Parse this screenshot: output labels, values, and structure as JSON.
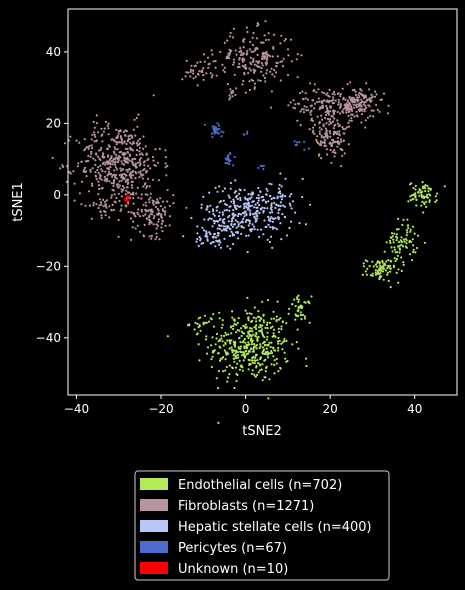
{
  "chart_data": {
    "type": "scatter",
    "title": "",
    "xlabel": "tSNE2",
    "ylabel": "tSNE1",
    "xlim": [
      -42,
      50
    ],
    "ylim": [
      -56,
      52
    ],
    "xticks": [
      -40,
      -20,
      0,
      20,
      40
    ],
    "yticks": [
      -40,
      -20,
      0,
      20,
      40
    ],
    "xtick_labels": [
      "−40",
      "−20",
      "0",
      "20",
      "40"
    ],
    "ytick_labels": [
      "−40",
      "−20",
      "0",
      "20",
      "40"
    ],
    "grid": false,
    "legend_position": "below",
    "series": [
      {
        "name": "Endothelial cells (n=702)",
        "color": "#b2ea5a",
        "count": 702,
        "clusters": [
          {
            "cx": 1,
            "cy": -42,
            "sx": 4.8,
            "sy": 5.2,
            "n": 420
          },
          {
            "cx": -10,
            "cy": -36,
            "sx": 1.6,
            "sy": 1.2,
            "n": 20
          },
          {
            "cx": 13,
            "cy": -32,
            "sx": 1.2,
            "sy": 1.8,
            "n": 40
          },
          {
            "cx": 42,
            "cy": 0,
            "sx": 1.7,
            "sy": 1.8,
            "n": 70
          },
          {
            "cx": 37,
            "cy": -13,
            "sx": 1.8,
            "sy": 3,
            "n": 77
          },
          {
            "cx": 32,
            "cy": -21,
            "sx": 1.7,
            "sy": 1.6,
            "n": 75
          }
        ]
      },
      {
        "name": "Fibroblasts (n=1271)",
        "color": "#b8949f",
        "count": 1271,
        "clusters": [
          {
            "cx": -30,
            "cy": 9,
            "sx": 5,
            "sy": 5.5,
            "n": 450
          },
          {
            "cx": -22,
            "cy": -5,
            "sx": 2.5,
            "sy": 3.2,
            "n": 120
          },
          {
            "cx": -32,
            "cy": -3,
            "sx": 2.5,
            "sy": 1.5,
            "n": 40
          },
          {
            "cx": 2,
            "cy": 38,
            "sx": 4.5,
            "sy": 4,
            "n": 200
          },
          {
            "cx": -11,
            "cy": 35,
            "sx": 2,
            "sy": 1.8,
            "n": 40
          },
          {
            "cx": -3,
            "cy": 28,
            "sx": 0.8,
            "sy": 1,
            "n": 11
          },
          {
            "cx": 21,
            "cy": 25,
            "sx": 5,
            "sy": 2.5,
            "n": 200
          },
          {
            "cx": 20,
            "cy": 16,
            "sx": 2,
            "sy": 3,
            "n": 120
          },
          {
            "cx": 27,
            "cy": 26,
            "sx": 2,
            "sy": 2,
            "n": 90
          }
        ]
      },
      {
        "name": "Hepatic stellate cells (n=400)",
        "color": "#b8c6f6",
        "count": 400,
        "clusters": [
          {
            "cx": 0,
            "cy": -5,
            "sx": 5.5,
            "sy": 3.8,
            "n": 280
          },
          {
            "cx": -8,
            "cy": -12,
            "sx": 2,
            "sy": 1.5,
            "n": 40
          },
          {
            "cx": 7,
            "cy": -1,
            "sx": 1.8,
            "sy": 2.5,
            "n": 50
          },
          {
            "cx": -5,
            "cy": -9,
            "sx": 2,
            "sy": 1.5,
            "n": 30
          }
        ]
      },
      {
        "name": "Pericytes (n=67)",
        "color": "#4d6dcc",
        "count": 67,
        "clusters": [
          {
            "cx": -7,
            "cy": 18,
            "sx": 1.2,
            "sy": 1,
            "n": 30
          },
          {
            "cx": -4,
            "cy": 10,
            "sx": 0.6,
            "sy": 1,
            "n": 20
          },
          {
            "cx": 13,
            "cy": 14,
            "sx": 0.8,
            "sy": 0.8,
            "n": 8
          },
          {
            "cx": 4,
            "cy": 8,
            "sx": 0.5,
            "sy": 0.5,
            "n": 5
          },
          {
            "cx": 0,
            "cy": 17,
            "sx": 0.5,
            "sy": 0.5,
            "n": 4
          }
        ]
      },
      {
        "name": "Unknown (n=10)",
        "color": "#ff0000",
        "count": 10,
        "clusters": [
          {
            "cx": -28,
            "cy": -1,
            "sx": 0.35,
            "sy": 0.7,
            "n": 10
          }
        ]
      }
    ]
  }
}
